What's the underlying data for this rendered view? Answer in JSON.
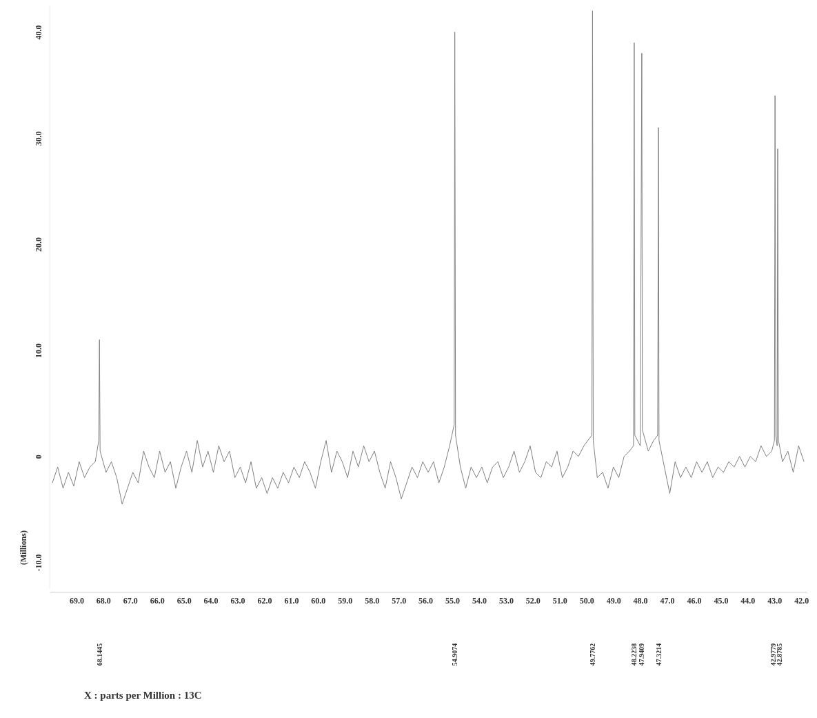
{
  "chart_data": {
    "type": "line",
    "ylabel": "(Millions)",
    "xlim": [
      70.0,
      41.8
    ],
    "ylim": [
      -12.5,
      42.5
    ],
    "xticks": [
      {
        "value": 69,
        "label": "69.0"
      },
      {
        "value": 68,
        "label": "68.0"
      },
      {
        "value": 67,
        "label": "67.0"
      },
      {
        "value": 66,
        "label": "66.0"
      },
      {
        "value": 65,
        "label": "65.0"
      },
      {
        "value": 64,
        "label": "64.0"
      },
      {
        "value": 63,
        "label": "63.0"
      },
      {
        "value": 62,
        "label": "62.0"
      },
      {
        "value": 61,
        "label": "61.0"
      },
      {
        "value": 60,
        "label": "60.0"
      },
      {
        "value": 59,
        "label": "59.0"
      },
      {
        "value": 58,
        "label": "58.0"
      },
      {
        "value": 57,
        "label": "57.0"
      },
      {
        "value": 56,
        "label": "56.0"
      },
      {
        "value": 55,
        "label": "55.0"
      },
      {
        "value": 54,
        "label": "54.0"
      },
      {
        "value": 53,
        "label": "53.0"
      },
      {
        "value": 52,
        "label": "52.0"
      },
      {
        "value": 51,
        "label": "51.0"
      },
      {
        "value": 50,
        "label": "50.0"
      },
      {
        "value": 49,
        "label": "49.0"
      },
      {
        "value": 48,
        "label": "48.0"
      },
      {
        "value": 47,
        "label": "47.0"
      },
      {
        "value": 46,
        "label": "46.0"
      },
      {
        "value": 45,
        "label": "45.0"
      },
      {
        "value": 44,
        "label": "44.0"
      },
      {
        "value": 43,
        "label": "43.0"
      },
      {
        "value": 42,
        "label": "42.0"
      }
    ],
    "yticks": [
      {
        "value": -10,
        "label": "-10.0"
      },
      0,
      {
        "value": 10,
        "label": "10.0"
      },
      {
        "value": 20,
        "label": "20.0"
      },
      {
        "value": 30,
        "label": "30.0"
      },
      {
        "value": 40,
        "label": "40.0"
      }
    ],
    "series": [
      {
        "color": "#808080",
        "x": [
          69.9,
          69.7,
          69.5,
          69.3,
          69.1,
          68.9,
          68.7,
          68.5,
          68.3,
          68.17,
          68.1445,
          68.12,
          67.9,
          67.7,
          67.5,
          67.3,
          67.1,
          66.9,
          66.7,
          66.5,
          66.3,
          66.1,
          65.9,
          65.7,
          65.5,
          65.3,
          65.1,
          64.9,
          64.7,
          64.5,
          64.3,
          64.1,
          63.9,
          63.7,
          63.5,
          63.3,
          63.1,
          62.9,
          62.7,
          62.5,
          62.3,
          62.1,
          61.9,
          61.7,
          61.5,
          61.3,
          61.1,
          60.9,
          60.7,
          60.5,
          60.3,
          60.1,
          59.9,
          59.7,
          59.5,
          59.3,
          59.1,
          58.9,
          58.7,
          58.5,
          58.3,
          58.1,
          57.9,
          57.7,
          57.5,
          57.3,
          57.1,
          56.9,
          56.7,
          56.5,
          56.3,
          56.1,
          55.9,
          55.7,
          55.5,
          55.3,
          55.1,
          54.93,
          54.9074,
          54.88,
          54.7,
          54.5,
          54.3,
          54.1,
          53.9,
          53.7,
          53.5,
          53.3,
          53.1,
          52.9,
          52.7,
          52.5,
          52.3,
          52.1,
          51.9,
          51.7,
          51.5,
          51.3,
          51.1,
          50.9,
          50.7,
          50.5,
          50.3,
          50.1,
          49.8,
          49.7762,
          49.75,
          49.6,
          49.4,
          49.2,
          49.0,
          48.8,
          48.6,
          48.4,
          48.25,
          48.2238,
          48.2,
          48.0,
          47.9409,
          47.92,
          47.7,
          47.5,
          47.35,
          47.3214,
          47.3,
          47.1,
          46.9,
          46.7,
          46.5,
          46.3,
          46.1,
          45.9,
          45.7,
          45.5,
          45.3,
          45.1,
          44.9,
          44.7,
          44.5,
          44.3,
          44.1,
          43.9,
          43.7,
          43.5,
          43.3,
          43.1,
          43.0,
          42.9779,
          42.95,
          42.9,
          42.8785,
          42.85,
          42.7,
          42.5,
          42.3,
          42.1,
          41.9
        ],
        "values": [
          -2.5,
          -1.0,
          -3.0,
          -1.5,
          -2.8,
          -0.5,
          -2.0,
          -1.0,
          -0.5,
          1.5,
          11.0,
          0.5,
          -1.5,
          -0.5,
          -2.0,
          -4.5,
          -3.0,
          -1.5,
          -2.5,
          0.5,
          -1.0,
          -2.0,
          0.5,
          -1.5,
          -0.5,
          -3.0,
          -1.0,
          0.5,
          -1.5,
          1.5,
          -1.0,
          0.5,
          -1.5,
          1.0,
          -0.5,
          0.5,
          -2.0,
          -1.0,
          -2.5,
          -0.5,
          -3.0,
          -2.0,
          -3.5,
          -2.0,
          -3.0,
          -1.5,
          -2.5,
          -1.0,
          -2.0,
          -0.5,
          -1.5,
          -3.0,
          -0.5,
          1.5,
          -1.5,
          0.5,
          -0.5,
          -2.0,
          0.5,
          -1.0,
          1.0,
          -0.5,
          0.5,
          -1.5,
          -3.0,
          -0.5,
          -2.0,
          -4.0,
          -2.5,
          -1.0,
          -2.0,
          -0.5,
          -1.5,
          -0.5,
          -2.5,
          -1.0,
          1.0,
          3.0,
          40.0,
          2.0,
          -1.0,
          -3.0,
          -1.0,
          -2.0,
          -1.0,
          -2.5,
          -1.0,
          -0.5,
          -2.0,
          -1.0,
          0.5,
          -1.5,
          -0.5,
          1.0,
          -1.5,
          -2.0,
          -0.5,
          -1.0,
          0.5,
          -2.0,
          -1.0,
          0.5,
          0.0,
          1.0,
          2.0,
          42.0,
          1.5,
          -2.0,
          -1.5,
          -3.0,
          -1.0,
          -2.0,
          0.0,
          0.5,
          1.0,
          39.0,
          2.0,
          1.0,
          38.0,
          2.5,
          0.5,
          1.5,
          2.0,
          31.0,
          1.5,
          -1.0,
          -3.5,
          -0.5,
          -2.0,
          -1.0,
          -2.0,
          -0.5,
          -1.5,
          -0.5,
          -2.0,
          -1.0,
          -1.5,
          -0.5,
          -1.0,
          0.0,
          -1.0,
          0.0,
          -0.5,
          1.0,
          0.0,
          0.5,
          1.5,
          34.0,
          2.0,
          1.0,
          29.0,
          1.5,
          -0.5,
          0.5,
          -1.5,
          1.0,
          -0.5
        ]
      }
    ],
    "x2lim": [
      70.0,
      41.8
    ],
    "x2ticks": [
      68.1445,
      54.9074,
      49.7762,
      48.2238,
      47.9409,
      47.3214,
      42.9779,
      42.8785
    ],
    "annotations": [
      "X : parts per Million : 13C"
    ]
  }
}
